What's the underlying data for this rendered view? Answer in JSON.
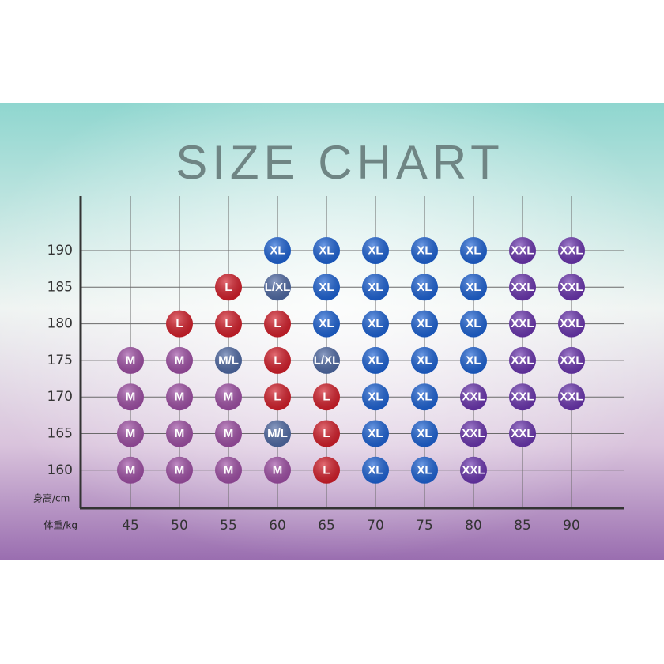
{
  "title": "SIZE CHART",
  "y_label": "身高/cm",
  "x_label": "体重/kg",
  "weights": [
    45,
    50,
    55,
    60,
    65,
    70,
    75,
    80,
    85,
    90
  ],
  "heights": [
    190,
    185,
    180,
    175,
    170,
    165,
    160
  ],
  "size_colors": {
    "M": "#a04fa6",
    "L": "#d51e2a",
    "XL": "#1d63d6",
    "XXL": "#6b35b0",
    "M/L": "#4f6aa5",
    "L/XL": "#4f6aa5"
  },
  "rows": [
    [
      null,
      null,
      null,
      "XL",
      "XL",
      "XL",
      "XL",
      "XL",
      "XXL",
      "XXL"
    ],
    [
      null,
      null,
      "L",
      "L/XL",
      "XL",
      "XL",
      "XL",
      "XL",
      "XXL",
      "XXL"
    ],
    [
      null,
      "L",
      "L",
      "L",
      "XL",
      "XL",
      "XL",
      "XL",
      "XXL",
      "XXL"
    ],
    [
      "M",
      "M",
      "M/L",
      "L",
      "L/XL",
      "XL",
      "XL",
      "XL",
      "XXL",
      "XXL"
    ],
    [
      "M",
      "M",
      "M",
      "L",
      "L",
      "XL",
      "XL",
      "XXL",
      "XXL",
      "XXL"
    ],
    [
      "M",
      "M",
      "M",
      "M/L",
      "L",
      "XL",
      "XL",
      "XXL",
      "XXL",
      null
    ],
    [
      "M",
      "M",
      "M",
      "M",
      "L",
      "XL",
      "XL",
      "XXL",
      null,
      null
    ]
  ]
}
